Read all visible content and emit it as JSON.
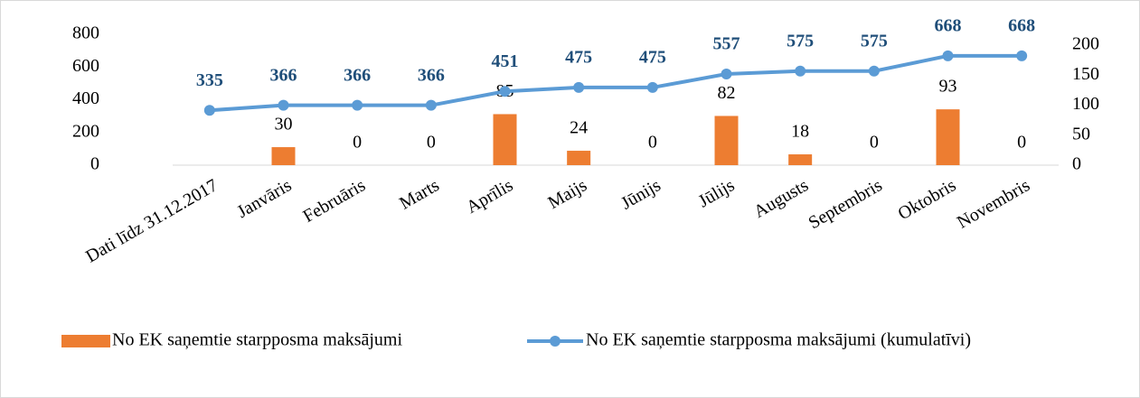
{
  "chart_data": {
    "type": "bar+line",
    "categories": [
      "Dati līdz 31.12.2017",
      "Janvāris",
      "Februāris",
      "Marts",
      "Aprīlis",
      "Maijs",
      "Jūnijs",
      "Jūlijs",
      "Augusts",
      "Septembris",
      "Oktobris",
      "Novembris"
    ],
    "series": [
      {
        "name": "No EK saņemtie starpposma maksājumi",
        "type": "bar",
        "color": "#ed7d31",
        "axis": "y2",
        "values": [
          null,
          30,
          0,
          0,
          85,
          24,
          0,
          82,
          18,
          0,
          93,
          0
        ]
      },
      {
        "name": "No EK saņemtie starpposma maksājumi (kumulatīvi)",
        "type": "line",
        "color": "#5b9bd5",
        "label_color": "#1f4e79",
        "values": [
          335,
          366,
          366,
          366,
          451,
          475,
          475,
          557,
          575,
          575,
          668,
          668
        ]
      }
    ],
    "ylim": [
      0,
      800
    ],
    "yticks": [
      0,
      200,
      400,
      600,
      800
    ],
    "y2lim": [
      0,
      200
    ],
    "y2ticks": [
      0,
      50,
      100,
      150,
      200
    ],
    "grid": false,
    "legend": "bottom"
  }
}
